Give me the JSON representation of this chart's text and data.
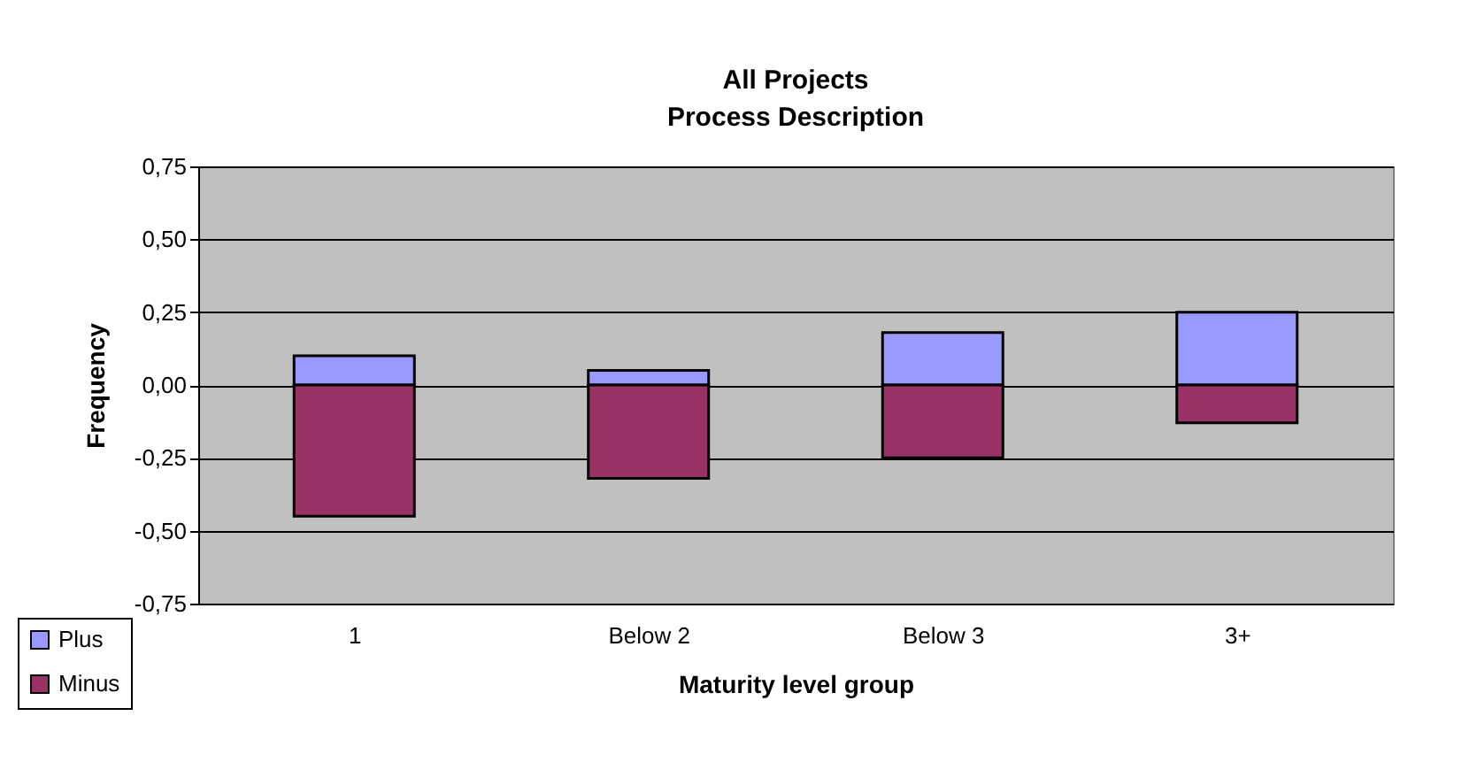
{
  "chart_data": {
    "type": "bar",
    "title": "All Projects",
    "subtitle": "Process Description",
    "xlabel": "Maturity level group",
    "ylabel": "Frequency",
    "categories": [
      "1",
      "Below 2",
      "Below 3",
      "3+"
    ],
    "series": [
      {
        "name": "Plus",
        "color": "#9999ff",
        "values": [
          0.1,
          0.05,
          0.18,
          0.25
        ]
      },
      {
        "name": "Minus",
        "color": "#993366",
        "values": [
          -0.45,
          -0.32,
          -0.25,
          -0.13
        ]
      }
    ],
    "stacked": true,
    "ylim": [
      -0.75,
      0.75
    ],
    "yticks": [
      {
        "value": -0.75,
        "label": "-0,75"
      },
      {
        "value": -0.5,
        "label": "-0,50"
      },
      {
        "value": -0.25,
        "label": "-0,25"
      },
      {
        "value": 0,
        "label": "0,00"
      },
      {
        "value": 0.25,
        "label": "0,25"
      },
      {
        "value": 0.5,
        "label": "0,50"
      },
      {
        "value": 0.75,
        "label": "0,75"
      }
    ],
    "grid": "y",
    "legend": "bottom left"
  }
}
